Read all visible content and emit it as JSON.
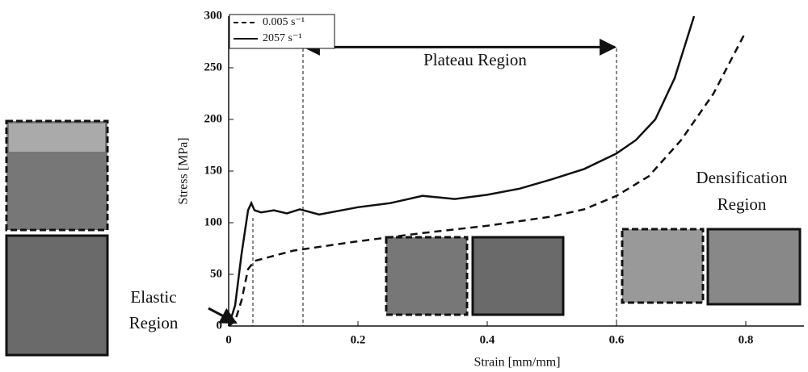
{
  "chart_data": {
    "type": "line",
    "x_label": "Strain [mm/mm]",
    "y_label": "Stress [MPa]",
    "xlim": [
      0,
      0.89
    ],
    "ylim": [
      0,
      300
    ],
    "xticks": [
      0,
      0.2,
      0.4,
      0.6,
      0.8
    ],
    "yticks": [
      0,
      50,
      100,
      150,
      200,
      250,
      300
    ],
    "legend": "upper left",
    "series": [
      {
        "name": "0.005 s⁻¹",
        "color": "#111111",
        "line_style": "dashed",
        "x": [
          0,
          0.01,
          0.02,
          0.03,
          0.04,
          0.1,
          0.2,
          0.3,
          0.4,
          0.5,
          0.55,
          0.6,
          0.65,
          0.7,
          0.75,
          0.8
        ],
        "values": [
          0,
          5,
          25,
          55,
          63,
          73,
          82,
          90,
          97,
          106,
          113,
          126,
          145,
          180,
          225,
          285
        ]
      },
      {
        "name": "2057 s⁻¹",
        "color": "#111111",
        "line_style": "solid",
        "x": [
          0,
          0.01,
          0.02,
          0.03,
          0.035,
          0.04,
          0.05,
          0.07,
          0.09,
          0.11,
          0.14,
          0.2,
          0.25,
          0.3,
          0.35,
          0.4,
          0.45,
          0.5,
          0.55,
          0.6,
          0.63,
          0.66,
          0.69,
          0.71,
          0.72
        ],
        "values": [
          0,
          20,
          70,
          112,
          119,
          112,
          110,
          112,
          109,
          113,
          108,
          115,
          119,
          126,
          123,
          127,
          133,
          142,
          152,
          167,
          180,
          200,
          240,
          280,
          300
        ]
      }
    ],
    "vlines": [
      0.115,
      0.6
    ],
    "annotations": {
      "plateau": "Plateau Region",
      "densification": [
        "Densification",
        "Region"
      ],
      "elastic": [
        "Elastic",
        "Region"
      ]
    }
  }
}
